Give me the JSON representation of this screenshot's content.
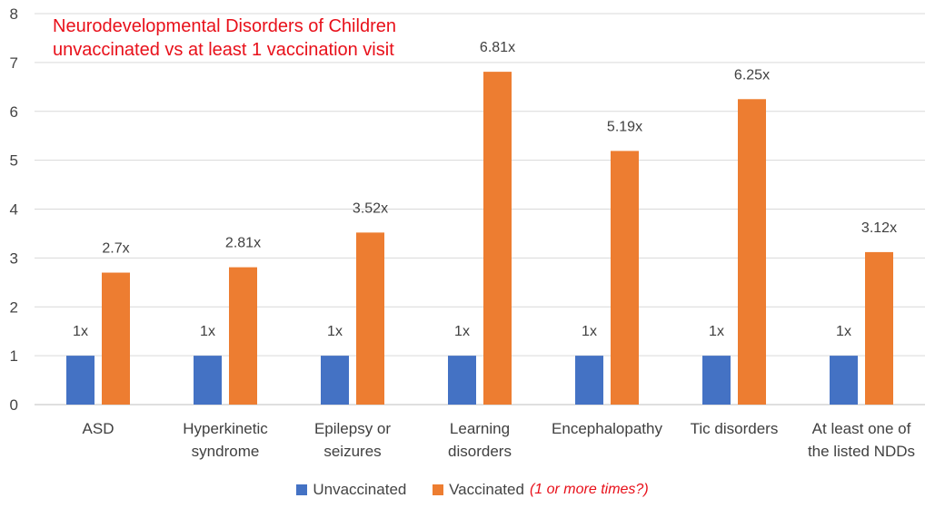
{
  "chart_data": {
    "type": "bar",
    "title": [
      "Neurodevelopmental Disorders of Children",
      "unvaccinated vs  at least 1 vaccination visit"
    ],
    "categories": [
      [
        "ASD"
      ],
      [
        "Hyperkinetic",
        "syndrome"
      ],
      [
        "Epilepsy or",
        "seizures"
      ],
      [
        "Learning",
        "disorders"
      ],
      [
        "Encephalopathy"
      ],
      [
        "Tic disorders"
      ],
      [
        "At least one of",
        "the listed NDDs"
      ]
    ],
    "series": [
      {
        "name": "Unvaccinated",
        "color": "#4472c4",
        "values": [
          1,
          1,
          1,
          1,
          1,
          1,
          1
        ],
        "labels": [
          "1x",
          "1x",
          "1x",
          "1x",
          "1x",
          "1x",
          "1x"
        ]
      },
      {
        "name": "Vaccinated",
        "color": "#ed7d31",
        "values": [
          2.7,
          2.81,
          3.52,
          6.81,
          5.19,
          6.25,
          3.12
        ],
        "labels": [
          "2.7x",
          "2.81x",
          "3.52x",
          "6.81x",
          "5.19x",
          "6.25x",
          "3.12x"
        ]
      }
    ],
    "legend_note": "(1 or more times?)",
    "ylim": [
      0,
      8
    ],
    "yticks": [
      0,
      1,
      2,
      3,
      4,
      5,
      6,
      7,
      8
    ],
    "grid": true,
    "xlabel": "",
    "ylabel": ""
  }
}
